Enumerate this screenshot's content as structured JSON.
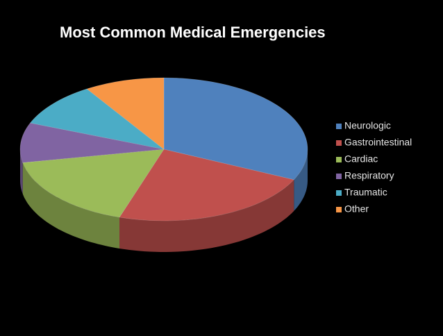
{
  "chart_data": {
    "type": "pie3d",
    "title": "Most Common Medical Emergencies",
    "categories": [
      "Neurologic",
      "Gastrointestinal",
      "Cardiac",
      "Respiratory",
      "Traumatic",
      "Other"
    ],
    "values": [
      32,
      23,
      17,
      9,
      10,
      9
    ],
    "colors": [
      "#4f81bd",
      "#c0504d",
      "#9bbb59",
      "#8064a2",
      "#4bacc6",
      "#f79646"
    ],
    "legend": "right"
  }
}
